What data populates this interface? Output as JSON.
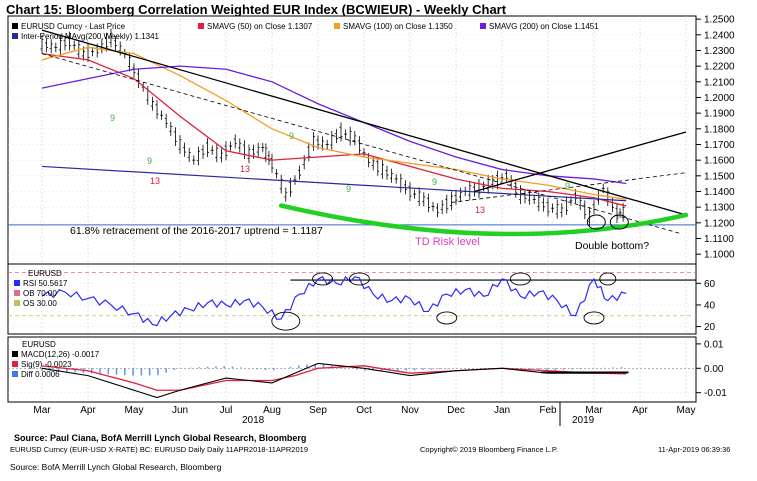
{
  "title": "Chart 15: Bloomberg Correlation Weighted EUR Index (BCWIEUR) - Weekly Chart",
  "colors": {
    "price": "#000000",
    "ma50": "#e0203c",
    "ma100": "#f0a020",
    "ma200": "#6a1ee0",
    "interperiod": "#2a2aa0",
    "green_arc": "#22d022",
    "td_label": "#e040c0",
    "td_count": "#d02040",
    "td_nine": "#40b040",
    "grid": "#cccccc"
  },
  "legend_main": {
    "price": "EURUSD Curncy - Last Price",
    "interperiod": "Inter-Period MAvg(200,Weekly) 1.1341",
    "ma50": "SMAVG (50)  on Close 1.1307",
    "ma100": "SMAVG (100)  on Close 1.1350",
    "ma200": "SMAVG (200)  on Close 1.1451"
  },
  "annotations": {
    "retracement": "61.8% retracement of the 2016-2017 uptrend = 1.1187",
    "td_risk": "TD Risk level",
    "double_bottom": "Double bottom?",
    "td_counts": [
      "9",
      "9",
      "13",
      "13",
      "9",
      "9",
      "9",
      "13",
      "9"
    ]
  },
  "rsi_legend": {
    "header": "EURUSD",
    "rsi": "RSI 50.5617",
    "ob": "OB 70.00",
    "os": "OS 30.00"
  },
  "macd_legend": {
    "header": "EURUSD",
    "macd": "MACD(12,26) -0.0017",
    "sig": "Sig(9) -0.0023",
    "diff": "Diff 0.0006"
  },
  "x_axis": {
    "months": [
      "Mar",
      "Apr",
      "May",
      "Jun",
      "Jul",
      "Aug",
      "Sep",
      "Oct",
      "Nov",
      "Dec",
      "Jan",
      "Feb",
      "Mar",
      "Apr",
      "May"
    ],
    "years": [
      "2018",
      "2019"
    ]
  },
  "footer": {
    "source_bold": "Source: Paul Ciana, BofA Merrill Lynch Global Research, Bloomberg",
    "bbg_line": "EURUSD Curncy (EUR-USD X-RATE) BC: EURUSD Daily  Daily 11APR2018-11APR2019",
    "copyright": "Copyright© 2019 Bloomberg Finance L.P.",
    "timestamp": "11-Apr-2019 06:39:36",
    "source": "Source: BofA Merrill Lynch Global Research, Bloomberg"
  },
  "chart_data": [
    {
      "type": "line",
      "panel": "price",
      "y_ticks": [
        "1.2500",
        "1.2400",
        "1.2300",
        "1.2200",
        "1.2100",
        "1.2000",
        "1.1900",
        "1.1800",
        "1.1700",
        "1.1600",
        "1.1500",
        "1.1400",
        "1.1300",
        "1.1200",
        "1.1100",
        "1.1000"
      ],
      "ylim": [
        1.095,
        1.252
      ],
      "x_months": [
        "Mar",
        "Apr",
        "May",
        "Jun",
        "Jul",
        "Aug",
        "Sep",
        "Oct",
        "Nov",
        "Dec",
        "Jan",
        "Feb",
        "Mar",
        "Apr",
        "May"
      ],
      "series": [
        {
          "name": "EURUSD Curncy - Last Price",
          "role": "price",
          "x": [
            0.0,
            0.3,
            0.6,
            0.9,
            1.2,
            1.5,
            1.8,
            2.1,
            2.4,
            2.7,
            3.0,
            3.3,
            3.6,
            3.9,
            4.2,
            4.5,
            4.8,
            5.0,
            5.3,
            5.6,
            5.9,
            6.2,
            6.5,
            6.8,
            7.1,
            7.4,
            7.7,
            8.0,
            8.3,
            8.6,
            8.9,
            9.2,
            9.5,
            9.8,
            10.1,
            10.4,
            10.7,
            11.0,
            11.3,
            11.6,
            11.9,
            12.2,
            12.5,
            12.7
          ],
          "values": [
            1.234,
            1.232,
            1.236,
            1.228,
            1.23,
            1.238,
            1.228,
            1.212,
            1.196,
            1.185,
            1.17,
            1.16,
            1.168,
            1.163,
            1.172,
            1.164,
            1.168,
            1.158,
            1.138,
            1.152,
            1.172,
            1.17,
            1.178,
            1.174,
            1.16,
            1.154,
            1.148,
            1.14,
            1.135,
            1.128,
            1.134,
            1.14,
            1.142,
            1.146,
            1.15,
            1.138,
            1.135,
            1.13,
            1.128,
            1.137,
            1.124,
            1.142,
            1.126,
            1.127
          ]
        },
        {
          "name": "SMAVG (50)",
          "role": "ma50",
          "x": [
            0,
            1,
            2,
            3,
            4,
            5,
            6,
            7,
            8,
            9,
            10,
            11,
            12,
            12.7
          ],
          "values": [
            1.228,
            1.224,
            1.212,
            1.188,
            1.166,
            1.16,
            1.162,
            1.164,
            1.156,
            1.148,
            1.142,
            1.14,
            1.136,
            1.1307
          ]
        },
        {
          "name": "SMAVG (100)",
          "role": "ma100",
          "x": [
            0,
            1,
            2,
            3,
            4,
            5,
            6,
            7,
            8,
            9,
            10,
            11,
            12,
            12.7
          ],
          "values": [
            1.224,
            1.232,
            1.228,
            1.214,
            1.198,
            1.18,
            1.168,
            1.162,
            1.158,
            1.154,
            1.148,
            1.144,
            1.138,
            1.135
          ]
        },
        {
          "name": "SMAVG (200)",
          "role": "ma200",
          "x": [
            0,
            1,
            2,
            3,
            4,
            5,
            6,
            7,
            8,
            9,
            10,
            11,
            12,
            12.7
          ],
          "values": [
            1.206,
            1.212,
            1.218,
            1.22,
            1.218,
            1.21,
            1.196,
            1.184,
            1.172,
            1.162,
            1.154,
            1.15,
            1.148,
            1.1451
          ]
        },
        {
          "name": "Inter-Period MAvg(200,Weekly)",
          "role": "interperiod",
          "x": [
            0,
            12.7
          ],
          "values": [
            1.156,
            1.1341
          ]
        }
      ],
      "trendlines": [
        {
          "from": [
            0,
            1.243
          ],
          "to": [
            14.0,
            1.125
          ]
        },
        {
          "from": [
            9.4,
            1.14
          ],
          "to": [
            14.0,
            1.178
          ]
        }
      ],
      "reference_levels": [
        1.1187
      ],
      "support_arc": {
        "from": [
          5.2,
          1.131
        ],
        "mid": [
          9.8,
          1.113
        ],
        "to": [
          14.0,
          1.125
        ]
      }
    },
    {
      "type": "line",
      "panel": "rsi",
      "y_ticks": [
        "60",
        "40",
        "20"
      ],
      "ylim": [
        15,
        76
      ],
      "series": [
        {
          "name": "RSI",
          "role": "rsi",
          "x": [
            0,
            0.5,
            1.0,
            1.5,
            2.0,
            2.4,
            2.8,
            3.2,
            3.6,
            4.0,
            4.4,
            4.8,
            5.2,
            5.6,
            6.0,
            6.4,
            6.8,
            7.2,
            7.6,
            8.0,
            8.4,
            8.8,
            9.2,
            9.6,
            10.0,
            10.4,
            10.8,
            11.2,
            11.6,
            12.0,
            12.3,
            12.7
          ],
          "values": [
            48,
            52,
            46,
            40,
            32,
            22,
            30,
            36,
            42,
            40,
            44,
            38,
            27,
            50,
            64,
            60,
            66,
            50,
            44,
            46,
            34,
            50,
            54,
            48,
            64,
            48,
            52,
            44,
            30,
            64,
            44,
            50.56
          ]
        }
      ],
      "levels": {
        "OB": 70,
        "OS": 30,
        "resistance": 63
      }
    },
    {
      "type": "line",
      "panel": "macd",
      "y_ticks": [
        "0.01",
        "0.00",
        "-0.01"
      ],
      "ylim": [
        -0.013,
        0.012
      ],
      "series": [
        {
          "name": "MACD",
          "role": "macd",
          "x": [
            0,
            1,
            2,
            2.5,
            3,
            4,
            5,
            5.5,
            6,
            7,
            8,
            9,
            10,
            11,
            12,
            12.7
          ],
          "values": [
            0.0,
            -0.003,
            -0.009,
            -0.012,
            -0.009,
            -0.004,
            -0.006,
            -0.002,
            0.002,
            0.0,
            -0.003,
            -0.001,
            0.0,
            -0.002,
            -0.002,
            -0.0017
          ]
        },
        {
          "name": "Sig",
          "role": "sig",
          "x": [
            0,
            1,
            2,
            2.5,
            3,
            4,
            5,
            5.5,
            6,
            7,
            8,
            9,
            10,
            11,
            12,
            12.7
          ],
          "values": [
            0.001,
            -0.001,
            -0.006,
            -0.009,
            -0.009,
            -0.005,
            -0.005,
            -0.003,
            0.0,
            0.001,
            -0.002,
            -0.001,
            0.0,
            -0.001,
            -0.002,
            -0.0023
          ]
        }
      ]
    }
  ]
}
